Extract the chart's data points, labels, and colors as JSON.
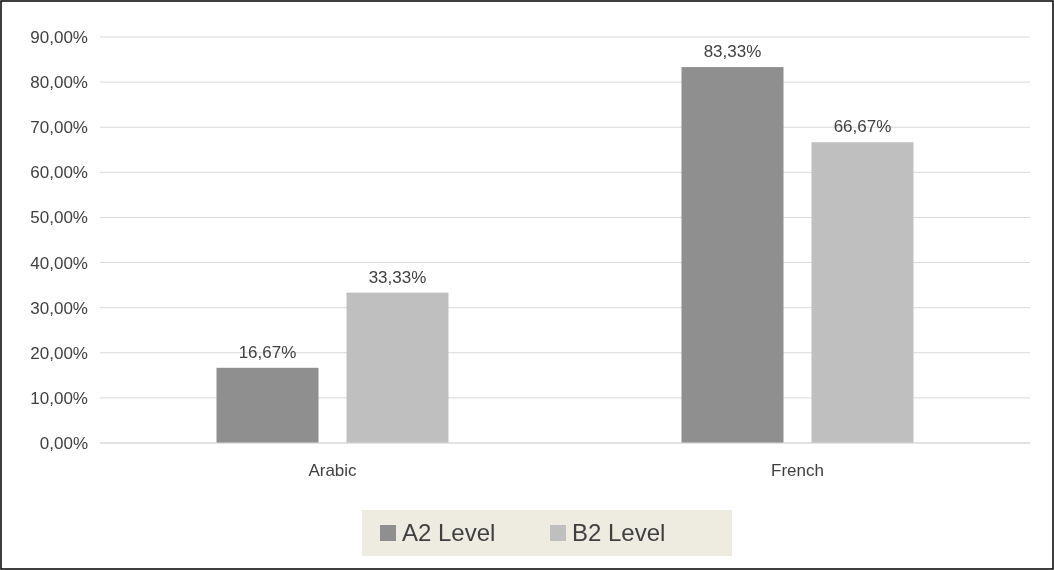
{
  "chart_data": {
    "type": "bar",
    "categories": [
      "Arabic",
      "French"
    ],
    "series": [
      {
        "name": "A2 Level",
        "color": "#8f8f8f",
        "values": [
          16.67,
          83.33
        ],
        "value_labels": [
          "16,67%",
          "83,33%"
        ]
      },
      {
        "name": "B2 Level",
        "color": "#bfbfbf",
        "values": [
          33.33,
          66.67
        ],
        "value_labels": [
          "33,33%",
          "66,67%"
        ]
      }
    ],
    "ylim": [
      0,
      90
    ],
    "yticks": [
      {
        "value": 0,
        "label": "0,00%"
      },
      {
        "value": 10,
        "label": "10,00%"
      },
      {
        "value": 20,
        "label": "20,00%"
      },
      {
        "value": 30,
        "label": "30,00%"
      },
      {
        "value": 40,
        "label": "40,00%"
      },
      {
        "value": 50,
        "label": "50,00%"
      },
      {
        "value": 60,
        "label": "60,00%"
      },
      {
        "value": 70,
        "label": "70,00%"
      },
      {
        "value": 80,
        "label": "80,00%"
      },
      {
        "value": 90,
        "label": "90,00%"
      }
    ],
    "grid": "y",
    "legend": "bottom"
  }
}
